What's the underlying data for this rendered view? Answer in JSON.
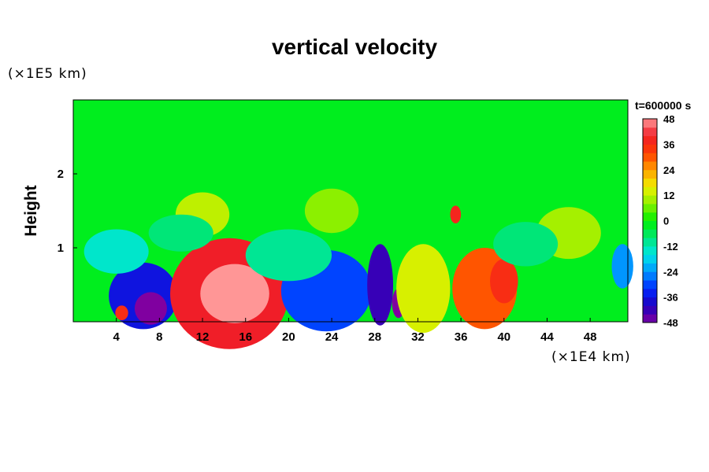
{
  "chart_data": {
    "type": "heatmap",
    "title": "vertical velocity",
    "ylabel": "Height",
    "xunit": "(×1E4 km)",
    "yunit": "(×1E5 km)",
    "time_label": "t=600000 s",
    "xlim": [
      0,
      51.5
    ],
    "ylim": [
      0,
      3.0
    ],
    "x_ticks": [
      4,
      8,
      12,
      16,
      20,
      24,
      28,
      32,
      36,
      40,
      44,
      48
    ],
    "y_ticks": [
      1,
      2
    ],
    "colorbar": {
      "min": -48,
      "max": 48,
      "step": 4,
      "ticks": [
        48,
        36,
        24,
        12,
        0,
        -12,
        -24,
        -36,
        -48
      ]
    },
    "background_value": -2,
    "features": [
      {
        "x": 6.5,
        "y": 0.35,
        "rx": 3.2,
        "ry": 0.45,
        "value": -36
      },
      {
        "x": 7.2,
        "y": 0.18,
        "rx": 1.5,
        "ry": 0.22,
        "value": -48
      },
      {
        "x": 4.5,
        "y": 0.12,
        "rx": 0.6,
        "ry": 0.1,
        "value": 36
      },
      {
        "x": 14.5,
        "y": 0.38,
        "rx": 5.5,
        "ry": 0.75,
        "value": 40
      },
      {
        "x": 15.0,
        "y": 0.38,
        "rx": 3.2,
        "ry": 0.4,
        "value": 48
      },
      {
        "x": 23.5,
        "y": 0.42,
        "rx": 4.2,
        "ry": 0.55,
        "value": -30
      },
      {
        "x": 28.5,
        "y": 0.5,
        "rx": 1.2,
        "ry": 0.55,
        "value": -42
      },
      {
        "x": 30.2,
        "y": 0.25,
        "rx": 0.6,
        "ry": 0.2,
        "value": -48
      },
      {
        "x": 32.5,
        "y": 0.45,
        "rx": 2.5,
        "ry": 0.6,
        "value": 14
      },
      {
        "x": 38.2,
        "y": 0.45,
        "rx": 3.0,
        "ry": 0.55,
        "value": 30
      },
      {
        "x": 40.0,
        "y": 0.55,
        "rx": 1.3,
        "ry": 0.3,
        "value": 36
      },
      {
        "x": 35.5,
        "y": 1.45,
        "rx": 0.5,
        "ry": 0.12,
        "value": 38
      },
      {
        "x": 12.0,
        "y": 1.45,
        "rx": 2.5,
        "ry": 0.3,
        "value": 12
      },
      {
        "x": 24.0,
        "y": 1.5,
        "rx": 2.5,
        "ry": 0.3,
        "value": 8
      },
      {
        "x": 46.0,
        "y": 1.2,
        "rx": 3.0,
        "ry": 0.35,
        "value": 10
      },
      {
        "x": 51.0,
        "y": 0.75,
        "rx": 1.0,
        "ry": 0.3,
        "value": -24
      },
      {
        "x": 4.0,
        "y": 0.95,
        "rx": 3.0,
        "ry": 0.3,
        "value": -14
      },
      {
        "x": 20.0,
        "y": 0.9,
        "rx": 4.0,
        "ry": 0.35,
        "value": -10
      },
      {
        "x": 10.0,
        "y": 1.2,
        "rx": 3.0,
        "ry": 0.25,
        "value": -8
      },
      {
        "x": 42.0,
        "y": 1.05,
        "rx": 3.0,
        "ry": 0.3,
        "value": -8
      }
    ]
  }
}
